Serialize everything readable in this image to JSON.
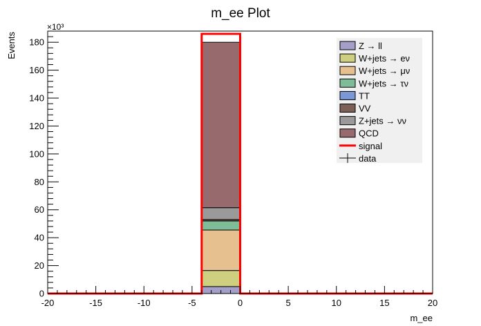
{
  "chart_data": {
    "type": "bar",
    "title": "m_ee Plot",
    "xlabel": "m_ee",
    "ylabel": "Events",
    "y_multiplier_label": "×10³",
    "xlim": [
      -20,
      20
    ],
    "ylim": [
      0,
      188
    ],
    "x_ticks": [
      -20,
      -15,
      -10,
      -5,
      0,
      5,
      10,
      15,
      20
    ],
    "y_ticks": [
      0,
      20,
      40,
      60,
      80,
      100,
      120,
      140,
      160,
      180
    ],
    "y_units": "thousands",
    "bin": {
      "x_low": -4,
      "x_high": 0
    },
    "stack": [
      {
        "name": "Z → ll",
        "value": 5,
        "color": "#a49fc8"
      },
      {
        "name": "W+jets → eν",
        "value": 11.5,
        "color": "#cfcf80"
      },
      {
        "name": "W+jets → μν",
        "value": 29,
        "color": "#e6c08f"
      },
      {
        "name": "W+jets → τν",
        "value": 6.5,
        "color": "#7fbd98"
      },
      {
        "name": "TT",
        "value": 0,
        "color": "#7b97d6"
      },
      {
        "name": "VV",
        "value": 1,
        "color": "#7d5f55"
      },
      {
        "name": "Z+jets → νν",
        "value": 8.5,
        "color": "#9a9a9a"
      },
      {
        "name": "QCD",
        "value": 118.5,
        "color": "#976a6e"
      }
    ],
    "signal": {
      "name": "signal",
      "value": 186,
      "color": "#ff0000"
    },
    "data": {
      "name": "data"
    },
    "legend_position": "top-right",
    "grid": false
  }
}
